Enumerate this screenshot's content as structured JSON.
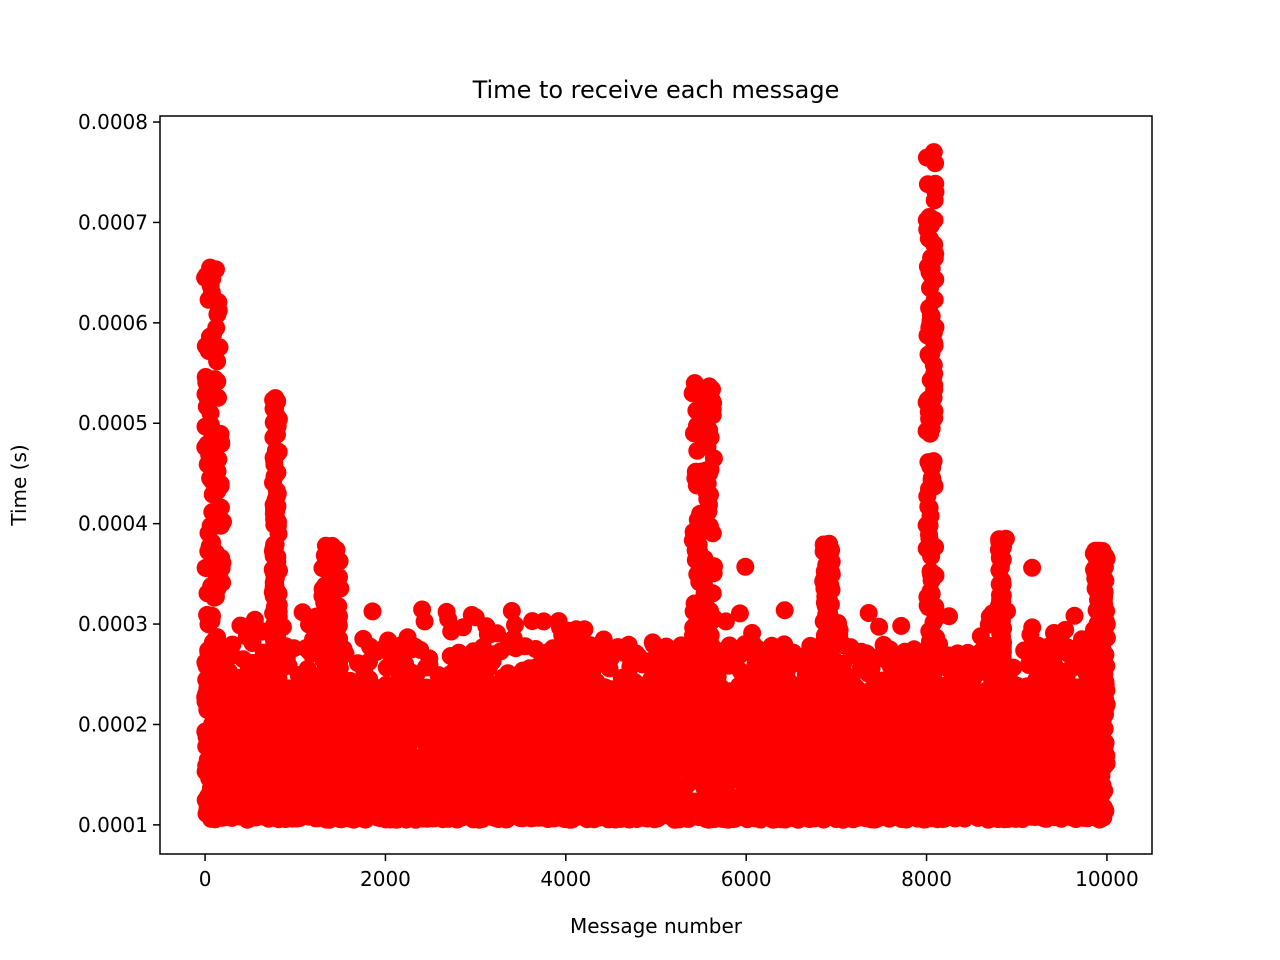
{
  "chart_data": {
    "type": "scatter",
    "title": "Time to receive each message",
    "xlabel": "Message number",
    "ylabel": "Time (s)",
    "xlim": [
      -500,
      10500
    ],
    "ylim": [
      7.1e-05,
      0.000806
    ],
    "xticks": [
      0,
      2000,
      4000,
      6000,
      8000,
      10000
    ],
    "xtick_labels": [
      "0",
      "2000",
      "4000",
      "6000",
      "8000",
      "10000"
    ],
    "yticks": [
      0.0001,
      0.0002,
      0.0003,
      0.0004,
      0.0005,
      0.0006,
      0.0007,
      0.0008
    ],
    "ytick_labels": [
      "0.0001",
      "0.0002",
      "0.0003",
      "0.0004",
      "0.0005",
      "0.0006",
      "0.0007",
      "0.0008"
    ],
    "grid": false,
    "marker_color": "#ff0000",
    "n_points": 10000,
    "baseline": {
      "min": 0.000105,
      "typical": 0.00018,
      "max_typical": 0.00024
    },
    "clusters": [
      {
        "x": [
          0,
          200
        ],
        "max": 0.000655,
        "note": "initial burst"
      },
      {
        "x": [
          750,
          820
        ],
        "max": 0.000525
      },
      {
        "x": [
          1300,
          1500
        ],
        "max": 0.000378
      },
      {
        "x": [
          5400,
          5650
        ],
        "max": 0.00054
      },
      {
        "x": [
          6850,
          6950
        ],
        "max": 0.00038
      },
      {
        "x": [
          8000,
          8100
        ],
        "max": 0.00077
      },
      {
        "x": [
          8800,
          8850
        ],
        "max": 0.000385
      },
      {
        "x": [
          9850,
          10000
        ],
        "max": 0.000373
      }
    ],
    "outliers": [
      {
        "x": 0,
        "y": 0.000645
      },
      {
        "x": 55,
        "y": 0.000655
      },
      {
        "x": 40,
        "y": 0.000572
      },
      {
        "x": 20,
        "y": 0.00054
      },
      {
        "x": 60,
        "y": 0.00051
      },
      {
        "x": 110,
        "y": 0.000483
      },
      {
        "x": 780,
        "y": 0.000525
      },
      {
        "x": 790,
        "y": 0.000508
      },
      {
        "x": 775,
        "y": 0.000488
      },
      {
        "x": 785,
        "y": 0.000473
      },
      {
        "x": 770,
        "y": 0.000447
      },
      {
        "x": 1340,
        "y": 0.000378
      },
      {
        "x": 5430,
        "y": 0.00054
      },
      {
        "x": 5435,
        "y": 0.000532
      },
      {
        "x": 5560,
        "y": 0.000515
      },
      {
        "x": 5570,
        "y": 0.000505
      },
      {
        "x": 5590,
        "y": 0.000493
      },
      {
        "x": 5420,
        "y": 0.00049
      },
      {
        "x": 5560,
        "y": 0.000478
      },
      {
        "x": 6920,
        "y": 0.00038
      },
      {
        "x": 8080,
        "y": 0.00077
      },
      {
        "x": 8090,
        "y": 0.000722
      },
      {
        "x": 8085,
        "y": 0.000678
      },
      {
        "x": 8090,
        "y": 0.000623
      },
      {
        "x": 8080,
        "y": 0.00059
      },
      {
        "x": 8085,
        "y": 0.00058
      },
      {
        "x": 8080,
        "y": 0.000558
      },
      {
        "x": 8085,
        "y": 0.000538
      },
      {
        "x": 8080,
        "y": 0.000513
      },
      {
        "x": 8085,
        "y": 0.000505
      },
      {
        "x": 8880,
        "y": 0.000385
      },
      {
        "x": 9870,
        "y": 0.000373
      },
      {
        "x": 5990,
        "y": 0.000357
      },
      {
        "x": 9170,
        "y": 0.000356
      }
    ]
  }
}
